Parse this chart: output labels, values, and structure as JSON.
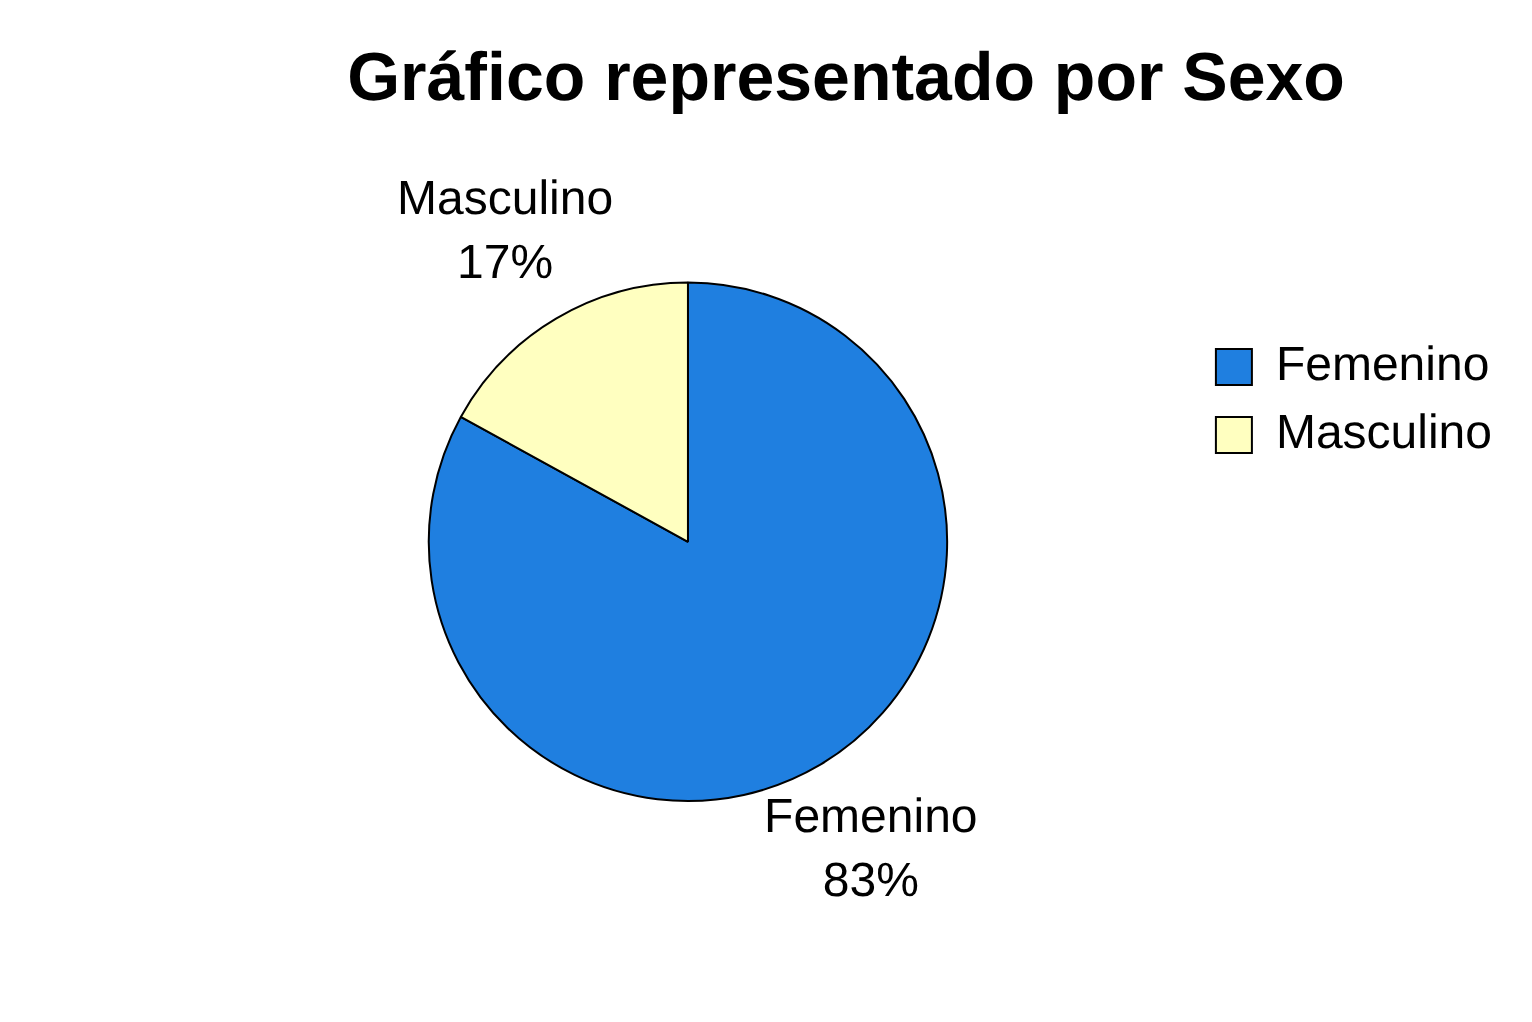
{
  "chart_data": {
    "type": "pie",
    "title": "Gráfico representado por Sexo",
    "categories": [
      "Femenino",
      "Masculino"
    ],
    "values": [
      83,
      17
    ],
    "colors": [
      "#1f7fe0",
      "#ffffc0"
    ],
    "value_labels": [
      "83%",
      "17%"
    ],
    "legend": "right"
  }
}
